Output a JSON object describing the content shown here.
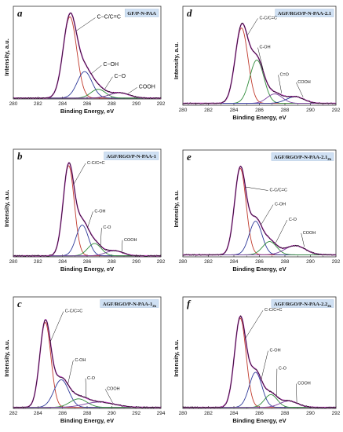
{
  "chart_data": [
    {
      "type": "line",
      "panel": "a",
      "title": "GF/P-N-PAA",
      "xlabel": "Binding Energy, eV",
      "ylabel": "Intensity, a.u.",
      "xlim": [
        280,
        292
      ],
      "xticks": [
        280,
        282,
        284,
        286,
        288,
        290,
        292
      ],
      "ylim": [
        0,
        1.05
      ],
      "baseline": 0.01,
      "peaks": [
        {
          "name": "C-C/C=C",
          "label": "C−C/C=C",
          "center": 284.6,
          "height": 0.92,
          "width": 0.55,
          "color": "#c0392b",
          "label_x": 286.8,
          "label_y": 0.93
        },
        {
          "name": "C-OH",
          "label": "C−OH",
          "center": 285.8,
          "height": 0.3,
          "width": 0.6,
          "color": "#2e3a9a",
          "label_x": 287.3,
          "label_y": 0.39
        },
        {
          "name": "C-O",
          "label": "C−O",
          "center": 286.9,
          "height": 0.1,
          "width": 0.6,
          "color": "#2e8b3a",
          "label_x": 288.2,
          "label_y": 0.26
        },
        {
          "name": "COOH",
          "label": "COOH",
          "center": 288.6,
          "height": 0.06,
          "width": 0.8,
          "color": "#6a2c8a",
          "label_x": 290.2,
          "label_y": 0.14
        }
      ]
    },
    {
      "type": "line",
      "panel": "d",
      "title": "AGF/RGO/P-N-PAA-2.1",
      "xlabel": "Binding Energy, eV",
      "ylabel": "Intensity, a.u.",
      "xlim": [
        280,
        292
      ],
      "xticks": [
        280,
        282,
        284,
        286,
        288,
        290,
        292
      ],
      "ylim": [
        0,
        1.05
      ],
      "baseline": 0.02,
      "peaks": [
        {
          "name": "C-C/C=C",
          "label": "C-C/C=C",
          "center": 284.6,
          "height": 0.8,
          "width": 0.5,
          "color": "#c0392b",
          "label_x": 286.0,
          "label_y": 0.93
        },
        {
          "name": "C-OH",
          "label": "C-OH",
          "center": 285.8,
          "height": 0.46,
          "width": 0.55,
          "color": "#2e8b3a",
          "label_x": 286.0,
          "label_y": 0.62
        },
        {
          "name": "C=O",
          "label": "C=O",
          "center": 287.2,
          "height": 0.1,
          "width": 0.6,
          "color": "#7a3fa0",
          "label_x": 287.6,
          "label_y": 0.33
        },
        {
          "name": "COOH",
          "label": "COOH",
          "center": 288.8,
          "height": 0.07,
          "width": 0.7,
          "color": "#2e3a9a",
          "label_x": 289.0,
          "label_y": 0.25
        }
      ]
    },
    {
      "type": "line",
      "panel": "b",
      "title": "AGF/RGO/P-N-PAA-1",
      "xlabel": "Binding Energy, eV",
      "ylabel": "Intensity, a.u.",
      "xlim": [
        280,
        292
      ],
      "xticks": [
        280,
        282,
        284,
        286,
        288,
        290,
        292
      ],
      "ylim": [
        0,
        1.05
      ],
      "baseline": 0.01,
      "peaks": [
        {
          "name": "C-C/C=C",
          "label": "C-C/C=C",
          "center": 284.5,
          "height": 0.88,
          "width": 0.45,
          "color": "#c0392b",
          "label_x": 286.0,
          "label_y": 0.92
        },
        {
          "name": "C-OH",
          "label": "C-OH",
          "center": 285.6,
          "height": 0.3,
          "width": 0.5,
          "color": "#2e3a9a",
          "label_x": 286.6,
          "label_y": 0.45
        },
        {
          "name": "C-O",
          "label": "C-O",
          "center": 286.6,
          "height": 0.12,
          "width": 0.55,
          "color": "#2e8b3a",
          "label_x": 287.3,
          "label_y": 0.29
        },
        {
          "name": "COOH",
          "label": "COOH",
          "center": 288.2,
          "height": 0.05,
          "width": 0.7,
          "color": "#7a3fa0",
          "label_x": 289.0,
          "label_y": 0.17
        }
      ]
    },
    {
      "type": "line",
      "panel": "e",
      "title": "AGF/RGO/P-N-PAA-2.1",
      "title_sub": "2h",
      "xlabel": "Binding Energy, eV",
      "ylabel": "Intensity, a.u.",
      "xlim": [
        280,
        292
      ],
      "xticks": [
        280,
        282,
        284,
        286,
        288,
        290,
        292
      ],
      "ylim": [
        0,
        1.05
      ],
      "baseline": 0.02,
      "peaks": [
        {
          "name": "C-C/C=C",
          "label": "C-C/C=C",
          "center": 284.5,
          "height": 0.85,
          "width": 0.45,
          "color": "#c0392b",
          "label_x": 286.8,
          "label_y": 0.66
        },
        {
          "name": "C-OH",
          "label": "C-OH",
          "center": 285.7,
          "height": 0.33,
          "width": 0.5,
          "color": "#2e3a9a",
          "label_x": 287.2,
          "label_y": 0.52
        },
        {
          "name": "C-O",
          "label": "C-O",
          "center": 286.8,
          "height": 0.13,
          "width": 0.55,
          "color": "#2e8b3a",
          "label_x": 288.3,
          "label_y": 0.37
        },
        {
          "name": "COOH",
          "label": "COOH",
          "center": 288.8,
          "height": 0.09,
          "width": 0.8,
          "color": "#7a3fa0",
          "label_x": 289.4,
          "label_y": 0.24
        }
      ]
    },
    {
      "type": "line",
      "panel": "c",
      "title": "AGF/RGO/P-N-PAA-1",
      "title_sub": "2h",
      "xlabel": "Binding Energy, eV",
      "ylabel": "Intensity, a.u.",
      "xlim": [
        282,
        294
      ],
      "xticks": [
        282,
        284,
        286,
        288,
        290,
        292,
        294
      ],
      "ylim": [
        0,
        1.05
      ],
      "baseline": 0.01,
      "peaks": [
        {
          "name": "C-C/C=C",
          "label": "C-C/C=C",
          "center": 284.6,
          "height": 0.8,
          "width": 0.45,
          "color": "#c0392b",
          "label_x": 286.2,
          "label_y": 0.92
        },
        {
          "name": "C-OH",
          "label": "C-OH",
          "center": 285.9,
          "height": 0.26,
          "width": 0.6,
          "color": "#2e3a9a",
          "label_x": 287.0,
          "label_y": 0.46
        },
        {
          "name": "C-O",
          "label": "C-O",
          "center": 287.3,
          "height": 0.08,
          "width": 0.7,
          "color": "#2e8b3a",
          "label_x": 288.0,
          "label_y": 0.29
        },
        {
          "name": "COOH",
          "label": "COOH",
          "center": 289.0,
          "height": 0.05,
          "width": 1.2,
          "color": "#7a3fa0",
          "label_x": 289.6,
          "label_y": 0.19
        }
      ]
    },
    {
      "type": "line",
      "panel": "f",
      "title": "AGF/RGO/P-N-PAA-2.2",
      "title_sub": "2h",
      "xlabel": "Binding Energy, eV",
      "ylabel": "Intensity, a.u.",
      "xlim": [
        280,
        292
      ],
      "xticks": [
        280,
        282,
        284,
        286,
        288,
        290,
        292
      ],
      "ylim": [
        0,
        1.05
      ],
      "baseline": 0.01,
      "peaks": [
        {
          "name": "C-C/C=C",
          "label": "C-C/C=C",
          "center": 284.5,
          "height": 0.84,
          "width": 0.45,
          "color": "#c0392b",
          "label_x": 286.4,
          "label_y": 0.93
        },
        {
          "name": "C-OH",
          "label": "C-OH",
          "center": 285.7,
          "height": 0.33,
          "width": 0.5,
          "color": "#2e3a9a",
          "label_x": 286.8,
          "label_y": 0.55
        },
        {
          "name": "C-O",
          "label": "C-O",
          "center": 286.9,
          "height": 0.12,
          "width": 0.5,
          "color": "#2e8b3a",
          "label_x": 287.5,
          "label_y": 0.38
        },
        {
          "name": "COOH",
          "label": "COOH",
          "center": 288.3,
          "height": 0.06,
          "width": 0.7,
          "color": "#7a3fa0",
          "label_x": 289.0,
          "label_y": 0.24
        }
      ]
    }
  ]
}
